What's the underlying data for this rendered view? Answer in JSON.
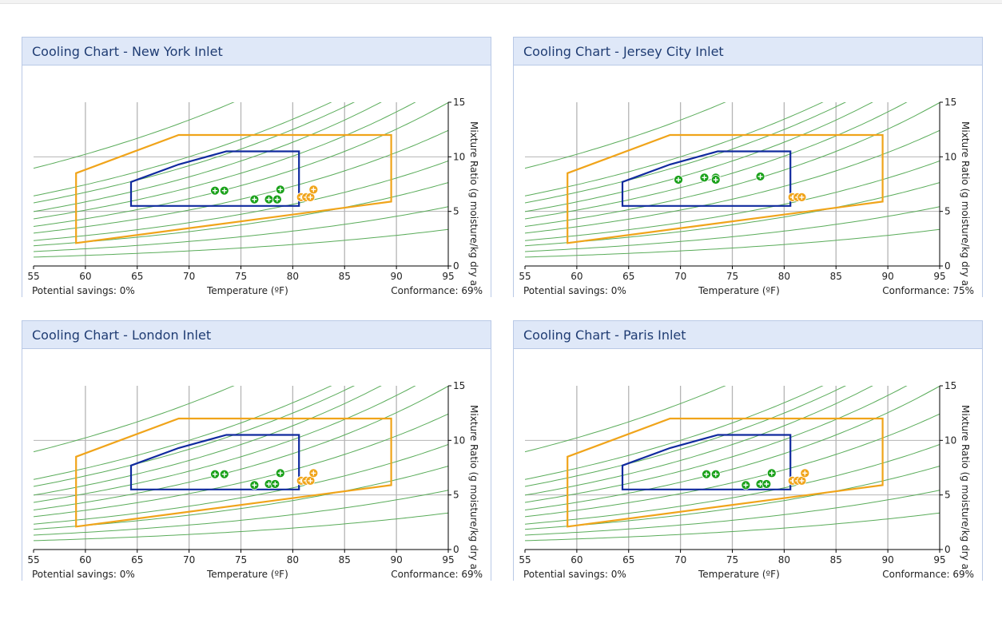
{
  "charts": [
    {
      "title": "Cooling Chart - New York Inlet",
      "savings_label": "Potential savings: 0%",
      "xlabel": "Temperature (ºF)",
      "conformance_label": "Conformance: 69%",
      "ylabel": "Mixture Ratio (g moisture/kg dry air)",
      "chart_data": {
        "type": "scatter",
        "xlim": [
          55,
          95
        ],
        "ylim": [
          0,
          15
        ],
        "x_ticks": [
          55,
          60,
          65,
          70,
          75,
          80,
          85,
          90,
          95
        ],
        "y_ticks": [
          0,
          5,
          10,
          15
        ],
        "grid": true,
        "series": [
          {
            "name": "",
            "color": "#1aa11a",
            "points": [
              [
                72.5,
                6.9
              ],
              [
                73.4,
                6.9
              ],
              [
                76.3,
                6.1
              ],
              [
                77.7,
                6.1
              ],
              [
                78.5,
                6.1
              ],
              [
                78.8,
                7.0
              ]
            ]
          },
          {
            "name": "",
            "color": "#f0a41a",
            "points": [
              [
                80.8,
                6.3
              ],
              [
                81.3,
                6.3
              ],
              [
                81.7,
                6.3
              ],
              [
                82.0,
                7.0
              ]
            ]
          }
        ]
      }
    },
    {
      "title": "Cooling Chart - Jersey City Inlet",
      "savings_label": "Potential savings: 0%",
      "xlabel": "Temperature (ºF)",
      "conformance_label": "Conformance: 75%",
      "ylabel": "Mixture Ratio (g moisture/kg dry air)",
      "chart_data": {
        "type": "scatter",
        "xlim": [
          55,
          95
        ],
        "ylim": [
          0,
          15
        ],
        "x_ticks": [
          55,
          60,
          65,
          70,
          75,
          80,
          85,
          90,
          95
        ],
        "y_ticks": [
          0,
          5,
          10,
          15
        ],
        "grid": true,
        "series": [
          {
            "name": "",
            "color": "#1aa11a",
            "points": [
              [
                69.8,
                7.9
              ],
              [
                72.3,
                8.1
              ],
              [
                73.4,
                8.1
              ],
              [
                73.4,
                7.9
              ],
              [
                77.7,
                8.2
              ]
            ]
          },
          {
            "name": "",
            "color": "#f0a41a",
            "points": [
              [
                80.8,
                6.3
              ],
              [
                81.3,
                6.3
              ],
              [
                81.7,
                6.3
              ]
            ]
          }
        ]
      }
    },
    {
      "title": "Cooling Chart - London Inlet",
      "savings_label": "Potential savings: 0%",
      "xlabel": "Temperature (ºF)",
      "conformance_label": "Conformance: 69%",
      "ylabel": "Mixture Ratio (g moisture/kg dry air)",
      "chart_data": {
        "type": "scatter",
        "xlim": [
          55,
          95
        ],
        "ylim": [
          0,
          15
        ],
        "x_ticks": [
          55,
          60,
          65,
          70,
          75,
          80,
          85,
          90,
          95
        ],
        "y_ticks": [
          0,
          5,
          10,
          15
        ],
        "grid": true,
        "series": [
          {
            "name": "",
            "color": "#1aa11a",
            "points": [
              [
                72.5,
                6.9
              ],
              [
                73.4,
                6.9
              ],
              [
                76.3,
                5.9
              ],
              [
                77.7,
                6.0
              ],
              [
                78.3,
                6.0
              ],
              [
                78.8,
                7.0
              ]
            ]
          },
          {
            "name": "",
            "color": "#f0a41a",
            "points": [
              [
                80.8,
                6.3
              ],
              [
                81.3,
                6.3
              ],
              [
                81.7,
                6.3
              ],
              [
                82.0,
                7.0
              ]
            ]
          }
        ]
      }
    },
    {
      "title": "Cooling Chart - Paris Inlet",
      "savings_label": "Potential savings: 0%",
      "xlabel": "Temperature (ºF)",
      "conformance_label": "Conformance: 69%",
      "ylabel": "Mixture Ratio (g moisture/kg dry air)",
      "chart_data": {
        "type": "scatter",
        "xlim": [
          55,
          95
        ],
        "ylim": [
          0,
          15
        ],
        "x_ticks": [
          55,
          60,
          65,
          70,
          75,
          80,
          85,
          90,
          95
        ],
        "y_ticks": [
          0,
          5,
          10,
          15
        ],
        "grid": true,
        "series": [
          {
            "name": "",
            "color": "#1aa11a",
            "points": [
              [
                72.5,
                6.9
              ],
              [
                73.4,
                6.9
              ],
              [
                76.3,
                5.9
              ],
              [
                77.7,
                6.0
              ],
              [
                78.3,
                6.0
              ],
              [
                78.8,
                7.0
              ]
            ]
          },
          {
            "name": "",
            "color": "#f0a41a",
            "points": [
              [
                80.8,
                6.3
              ],
              [
                81.3,
                6.3
              ],
              [
                81.7,
                6.3
              ],
              [
                82.0,
                7.0
              ]
            ]
          }
        ]
      }
    }
  ],
  "regions": {
    "recommended": {
      "color": "#102a9e",
      "points": [
        [
          64.4,
          5.5
        ],
        [
          80.6,
          5.5
        ],
        [
          80.6,
          10.5
        ],
        [
          73.6,
          10.5
        ],
        [
          69.0,
          9.3
        ],
        [
          64.4,
          7.7
        ]
      ]
    },
    "allowable": {
      "color": "#f0a41a",
      "points": [
        [
          59.1,
          2.1
        ],
        [
          89.5,
          5.9
        ],
        [
          89.5,
          12.0
        ],
        [
          69.0,
          12.0
        ],
        [
          59.1,
          8.5
        ]
      ]
    }
  },
  "rh_curve_color": "#5aac5a",
  "rh_curves": [
    [
      [
        55,
        0.81
      ],
      [
        95,
        3.35
      ]
    ],
    [
      [
        55,
        1.32
      ],
      [
        95,
        5.43
      ]
    ],
    [
      [
        55,
        1.85
      ],
      [
        95,
        7.64
      ]
    ],
    [
      [
        55,
        2.33
      ],
      [
        95,
        9.62
      ]
    ],
    [
      [
        55,
        3.01
      ],
      [
        95,
        12.42
      ]
    ],
    [
      [
        55,
        3.62
      ],
      [
        95,
        14.97
      ]
    ],
    [
      [
        55,
        4.32
      ],
      [
        91.8,
        15.0
      ]
    ],
    [
      [
        55,
        4.98
      ],
      [
        88.5,
        15.0
      ]
    ],
    [
      [
        55,
        5.78
      ],
      [
        85.9,
        15.0
      ]
    ],
    [
      [
        55,
        6.42
      ],
      [
        83.7,
        15.0
      ]
    ],
    [
      [
        55,
        8.95
      ],
      [
        74.3,
        15.0
      ]
    ]
  ]
}
